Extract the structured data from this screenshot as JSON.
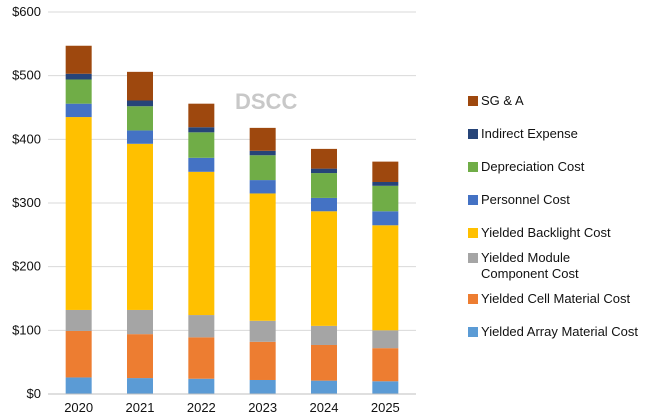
{
  "chart_data": {
    "type": "bar",
    "stacked": true,
    "categories": [
      "2020",
      "2021",
      "2022",
      "2023",
      "2024",
      "2025"
    ],
    "ylim": [
      0,
      600
    ],
    "yticks": [
      "$0",
      "$100",
      "$200",
      "$300",
      "$400",
      "$500",
      "$600"
    ],
    "grid": true,
    "legend_placement": "right",
    "watermark": "DSCC",
    "series": [
      {
        "name": "Yielded Array Material Cost",
        "color": "#5b9bd5",
        "values": [
          26,
          25,
          24,
          22,
          21,
          20
        ]
      },
      {
        "name": "Yielded Cell Material Cost",
        "color": "#ed7d31",
        "values": [
          73,
          69,
          65,
          60,
          56,
          52
        ]
      },
      {
        "name": "Yielded Module Component Cost",
        "color": "#a5a5a5",
        "values": [
          33,
          38,
          35,
          33,
          30,
          28
        ]
      },
      {
        "name": "Yielded Backlight Cost",
        "color": "#ffc000",
        "values": [
          303,
          261,
          225,
          200,
          180,
          165
        ]
      },
      {
        "name": "Personnel Cost",
        "color": "#4472c4",
        "values": [
          21,
          21,
          22,
          21,
          21,
          22
        ]
      },
      {
        "name": "Depreciation Cost",
        "color": "#70ad47",
        "values": [
          38,
          38,
          40,
          39,
          39,
          40
        ]
      },
      {
        "name": "Indirect Expense",
        "color": "#264478",
        "values": [
          9,
          9,
          8,
          7,
          7,
          6
        ]
      },
      {
        "name": "SG & A",
        "color": "#9e480e",
        "values": [
          44,
          45,
          37,
          36,
          31,
          32
        ]
      }
    ],
    "legend_order": [
      "SG & A",
      "Indirect Expense",
      "Depreciation Cost",
      "Personnel Cost",
      "Yielded Backlight Cost",
      "Yielded Module\nComponent Cost",
      "Yielded Cell Material Cost",
      "Yielded Array Material Cost"
    ]
  }
}
